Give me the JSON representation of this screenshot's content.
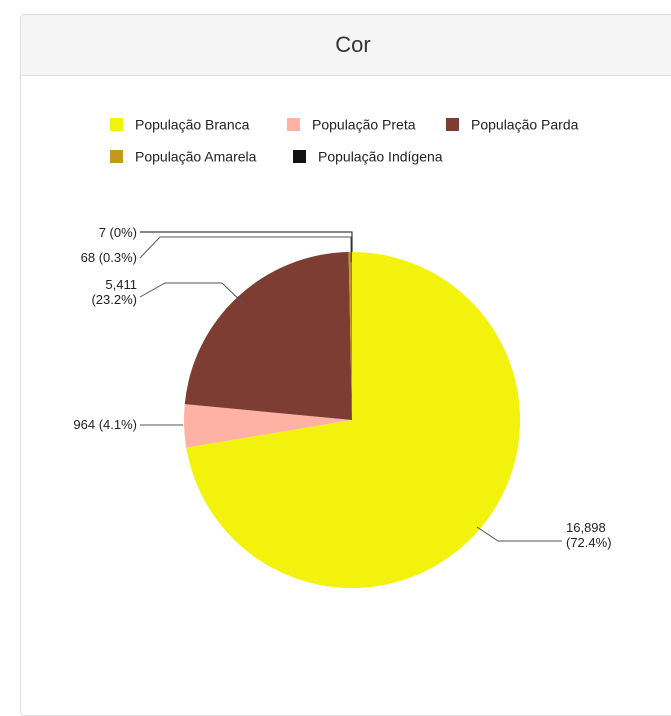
{
  "panel": {
    "title": "Cor"
  },
  "chart_data": {
    "type": "pie",
    "legend_position": "top",
    "slices": [
      {
        "name": "População Branca",
        "value": 16898,
        "percent": "72.4%",
        "color": "#f2f20d",
        "label_lines": [
          "16,898",
          "(72.4%)"
        ]
      },
      {
        "name": "População Preta",
        "value": 964,
        "percent": "4.1%",
        "color": "#fdb2a4",
        "label_lines": [
          "964 (4.1%)"
        ]
      },
      {
        "name": "População Parda",
        "value": 5411,
        "percent": "23.2%",
        "color": "#7d3d33",
        "label_lines": [
          "5,411",
          "(23.2%)"
        ]
      },
      {
        "name": "População Amarela",
        "value": 68,
        "percent": "0.3%",
        "color": "#c4981c",
        "label_lines": [
          "68 (0.3%)"
        ]
      },
      {
        "name": "População Indígena",
        "value": 7,
        "percent": "0%",
        "color": "#111111",
        "label_lines": [
          "7 (0%)"
        ]
      }
    ]
  }
}
